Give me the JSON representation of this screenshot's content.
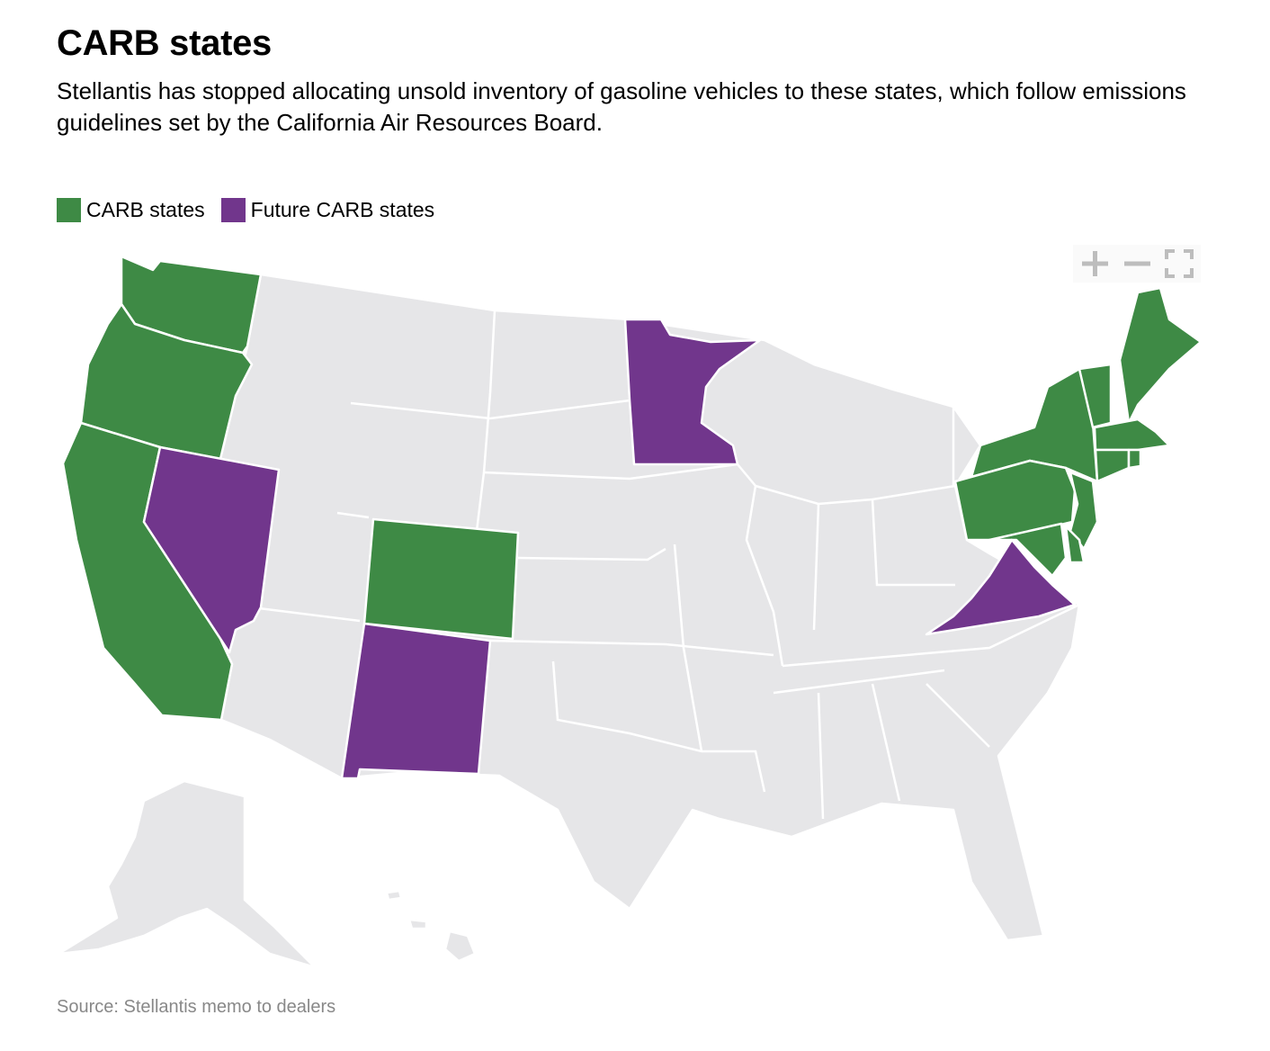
{
  "header": {
    "title": "CARB states",
    "subtitle": "Stellantis has stopped allocating unsold inventory of gasoline vehicles to these states, which follow emissions guidelines set by the California Air Resources Board."
  },
  "legend": [
    {
      "label": "CARB states",
      "color": "#3e8a45"
    },
    {
      "label": "Future CARB states",
      "color": "#71368c"
    }
  ],
  "colors": {
    "carb": "#3e8a45",
    "future": "#71368c",
    "other": "#e6e6e8",
    "border": "#ffffff",
    "controls": "#bdbdbd"
  },
  "map_controls": {
    "zoom_in": "plus-icon",
    "zoom_out": "minus-icon",
    "fullscreen": "fullscreen-icon"
  },
  "map": {
    "carb_states": [
      "Washington",
      "Oregon",
      "California",
      "Colorado",
      "New York",
      "Vermont",
      "Maine",
      "Massachusetts",
      "Connecticut",
      "Rhode Island",
      "Pennsylvania",
      "New Jersey",
      "Maryland",
      "Delaware"
    ],
    "future_carb_states": [
      "Nevada",
      "New Mexico",
      "Minnesota",
      "Virginia"
    ]
  },
  "footer": {
    "source": "Source: Stellantis memo to dealers"
  }
}
